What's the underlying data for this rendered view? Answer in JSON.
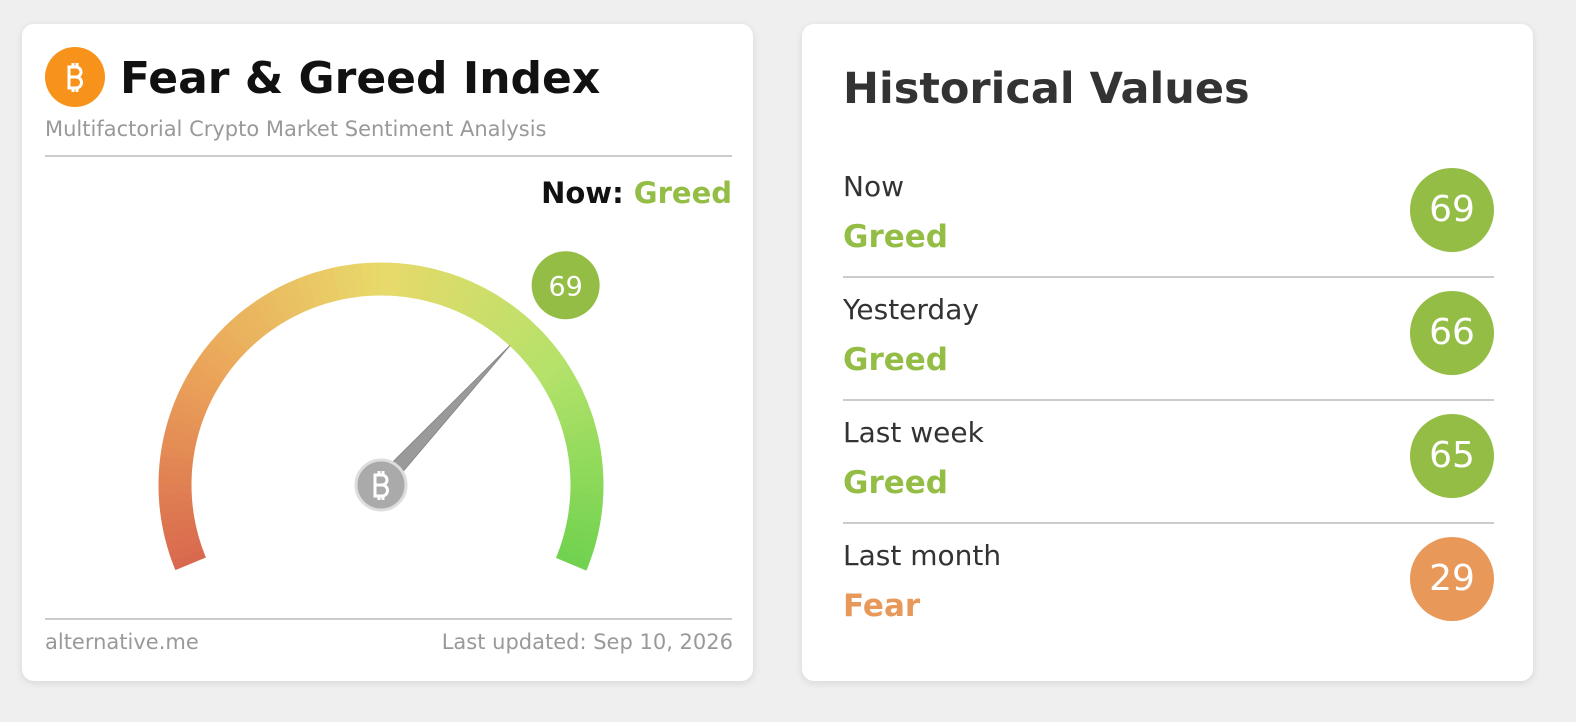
{
  "card": {
    "title": "Fear & Greed Index",
    "subtitle": "Multifactorial Crypto Market Sentiment Analysis",
    "now_label": "Now:",
    "now_classification": "Greed",
    "now_color": "#93bd44",
    "gauge": {
      "value": 69,
      "color": "#93bd44"
    },
    "source": "alternative.me",
    "last_updated": "Last updated: Sep 10, 2026"
  },
  "historical": {
    "title": "Historical Values",
    "items": [
      {
        "label": "Now",
        "classification": "Greed",
        "value": 69,
        "color": "#93bd44"
      },
      {
        "label": "Yesterday",
        "classification": "Greed",
        "value": 66,
        "color": "#93bd44"
      },
      {
        "label": "Last week",
        "classification": "Greed",
        "value": 65,
        "color": "#93bd44"
      },
      {
        "label": "Last month",
        "classification": "Fear",
        "value": 29,
        "color": "#e8995a"
      }
    ]
  }
}
